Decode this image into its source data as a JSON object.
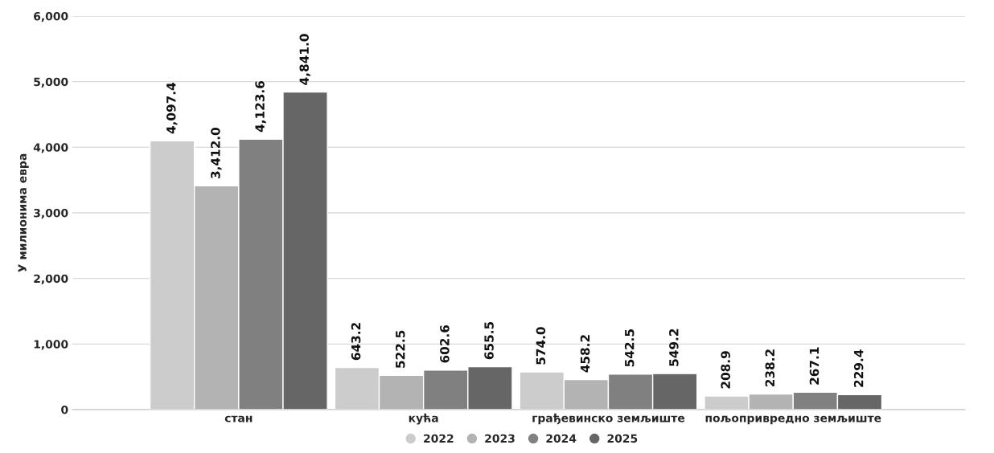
{
  "chart_data": {
    "type": "bar",
    "ylabel": "У милионима евра",
    "categories": [
      "стан",
      "кућа",
      "грађевинско земљиште",
      "пољопривредно земљиште"
    ],
    "series": [
      {
        "name": "2022",
        "color": "#cccccc",
        "values": [
          4097.4,
          643.2,
          574.0,
          208.9
        ],
        "value_labels": [
          "4,097.4",
          "643.2",
          "574.0",
          "208.9"
        ]
      },
      {
        "name": "2023",
        "color": "#b3b3b3",
        "values": [
          3412.0,
          522.5,
          458.2,
          238.2
        ],
        "value_labels": [
          "3,412.0",
          "522.5",
          "458.2",
          "238.2"
        ]
      },
      {
        "name": "2024",
        "color": "#808080",
        "values": [
          4123.6,
          602.6,
          542.5,
          267.1
        ],
        "value_labels": [
          "4,123.6",
          "602.6",
          "542.5",
          "267.1"
        ]
      },
      {
        "name": "2025",
        "color": "#666666",
        "values": [
          4841.0,
          655.5,
          549.2,
          229.4
        ],
        "value_labels": [
          "4,841.0",
          "655.5",
          "549.2",
          "229.4"
        ]
      }
    ],
    "ylim": [
      0,
      6000
    ],
    "yticks": [
      0,
      {
        "value": 1000,
        "label": "1,000"
      },
      {
        "value": 2000,
        "label": "2,000"
      },
      {
        "value": 3000,
        "label": "3,000"
      },
      {
        "value": 4000,
        "label": "4,000"
      },
      {
        "value": 5000,
        "label": "5,000"
      },
      {
        "value": 6000,
        "label": "6,000"
      }
    ],
    "grid": "y",
    "legend": "bottom"
  }
}
